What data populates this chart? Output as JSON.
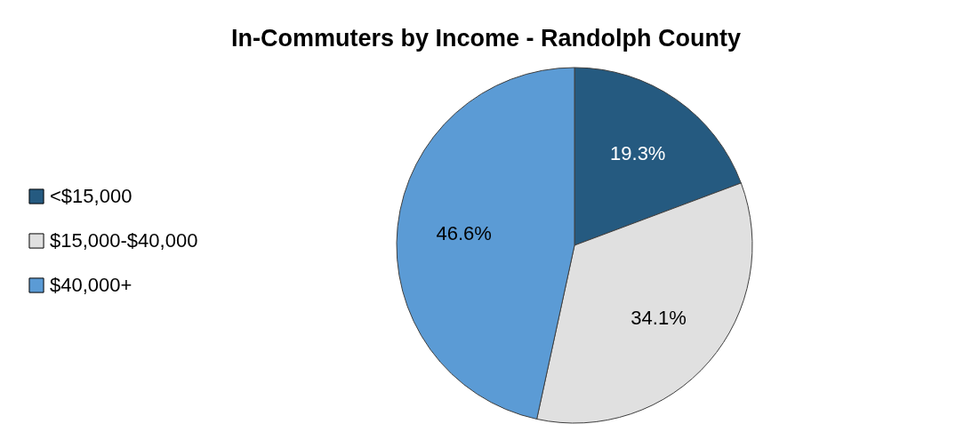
{
  "chart_data": {
    "type": "pie",
    "title": "In-Commuters by Income - Randolph County",
    "categories": [
      "<$15,000",
      "$15,000-$40,000",
      "$40,000+"
    ],
    "values": [
      19.3,
      34.1,
      46.6
    ],
    "colors": [
      "#255a80",
      "#e0e0e0",
      "#5b9bd5"
    ],
    "value_labels": [
      "19.3%",
      "34.1%",
      "46.6%"
    ],
    "legend": "left"
  }
}
